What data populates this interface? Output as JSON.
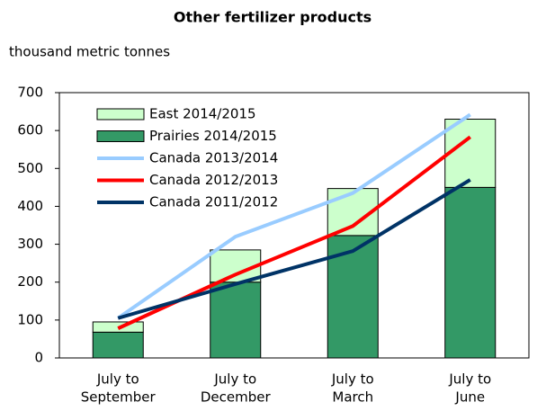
{
  "chart_data": {
    "type": "bar-line",
    "title": "Other fertilizer products",
    "y_axis_label": "thousand metric tonnes",
    "categories": [
      [
        "July to",
        "September"
      ],
      [
        "July to",
        "December"
      ],
      [
        "July to",
        "March"
      ],
      [
        "July to",
        "June"
      ]
    ],
    "bar_series": [
      {
        "name": "Prairies 2014/2015",
        "color": "#339966",
        "values": [
          68,
          200,
          323,
          450
        ]
      },
      {
        "name": "East 2014/2015",
        "color": "#ccffcc",
        "values": [
          27,
          85,
          124,
          180
        ]
      }
    ],
    "line_series": [
      {
        "name": "Canada 2013/2014",
        "color": "#99ccff",
        "values": [
          105,
          320,
          435,
          642
        ]
      },
      {
        "name": "Canada 2012/2013",
        "color": "#ff0000",
        "values": [
          78,
          220,
          348,
          583
        ]
      },
      {
        "name": "Canada 2011/2012",
        "color": "#003366",
        "values": [
          105,
          195,
          282,
          470
        ]
      }
    ],
    "ylim": [
      0,
      700
    ],
    "yticks": [
      0,
      100,
      200,
      300,
      400,
      500,
      600,
      700
    ],
    "grid": false
  }
}
